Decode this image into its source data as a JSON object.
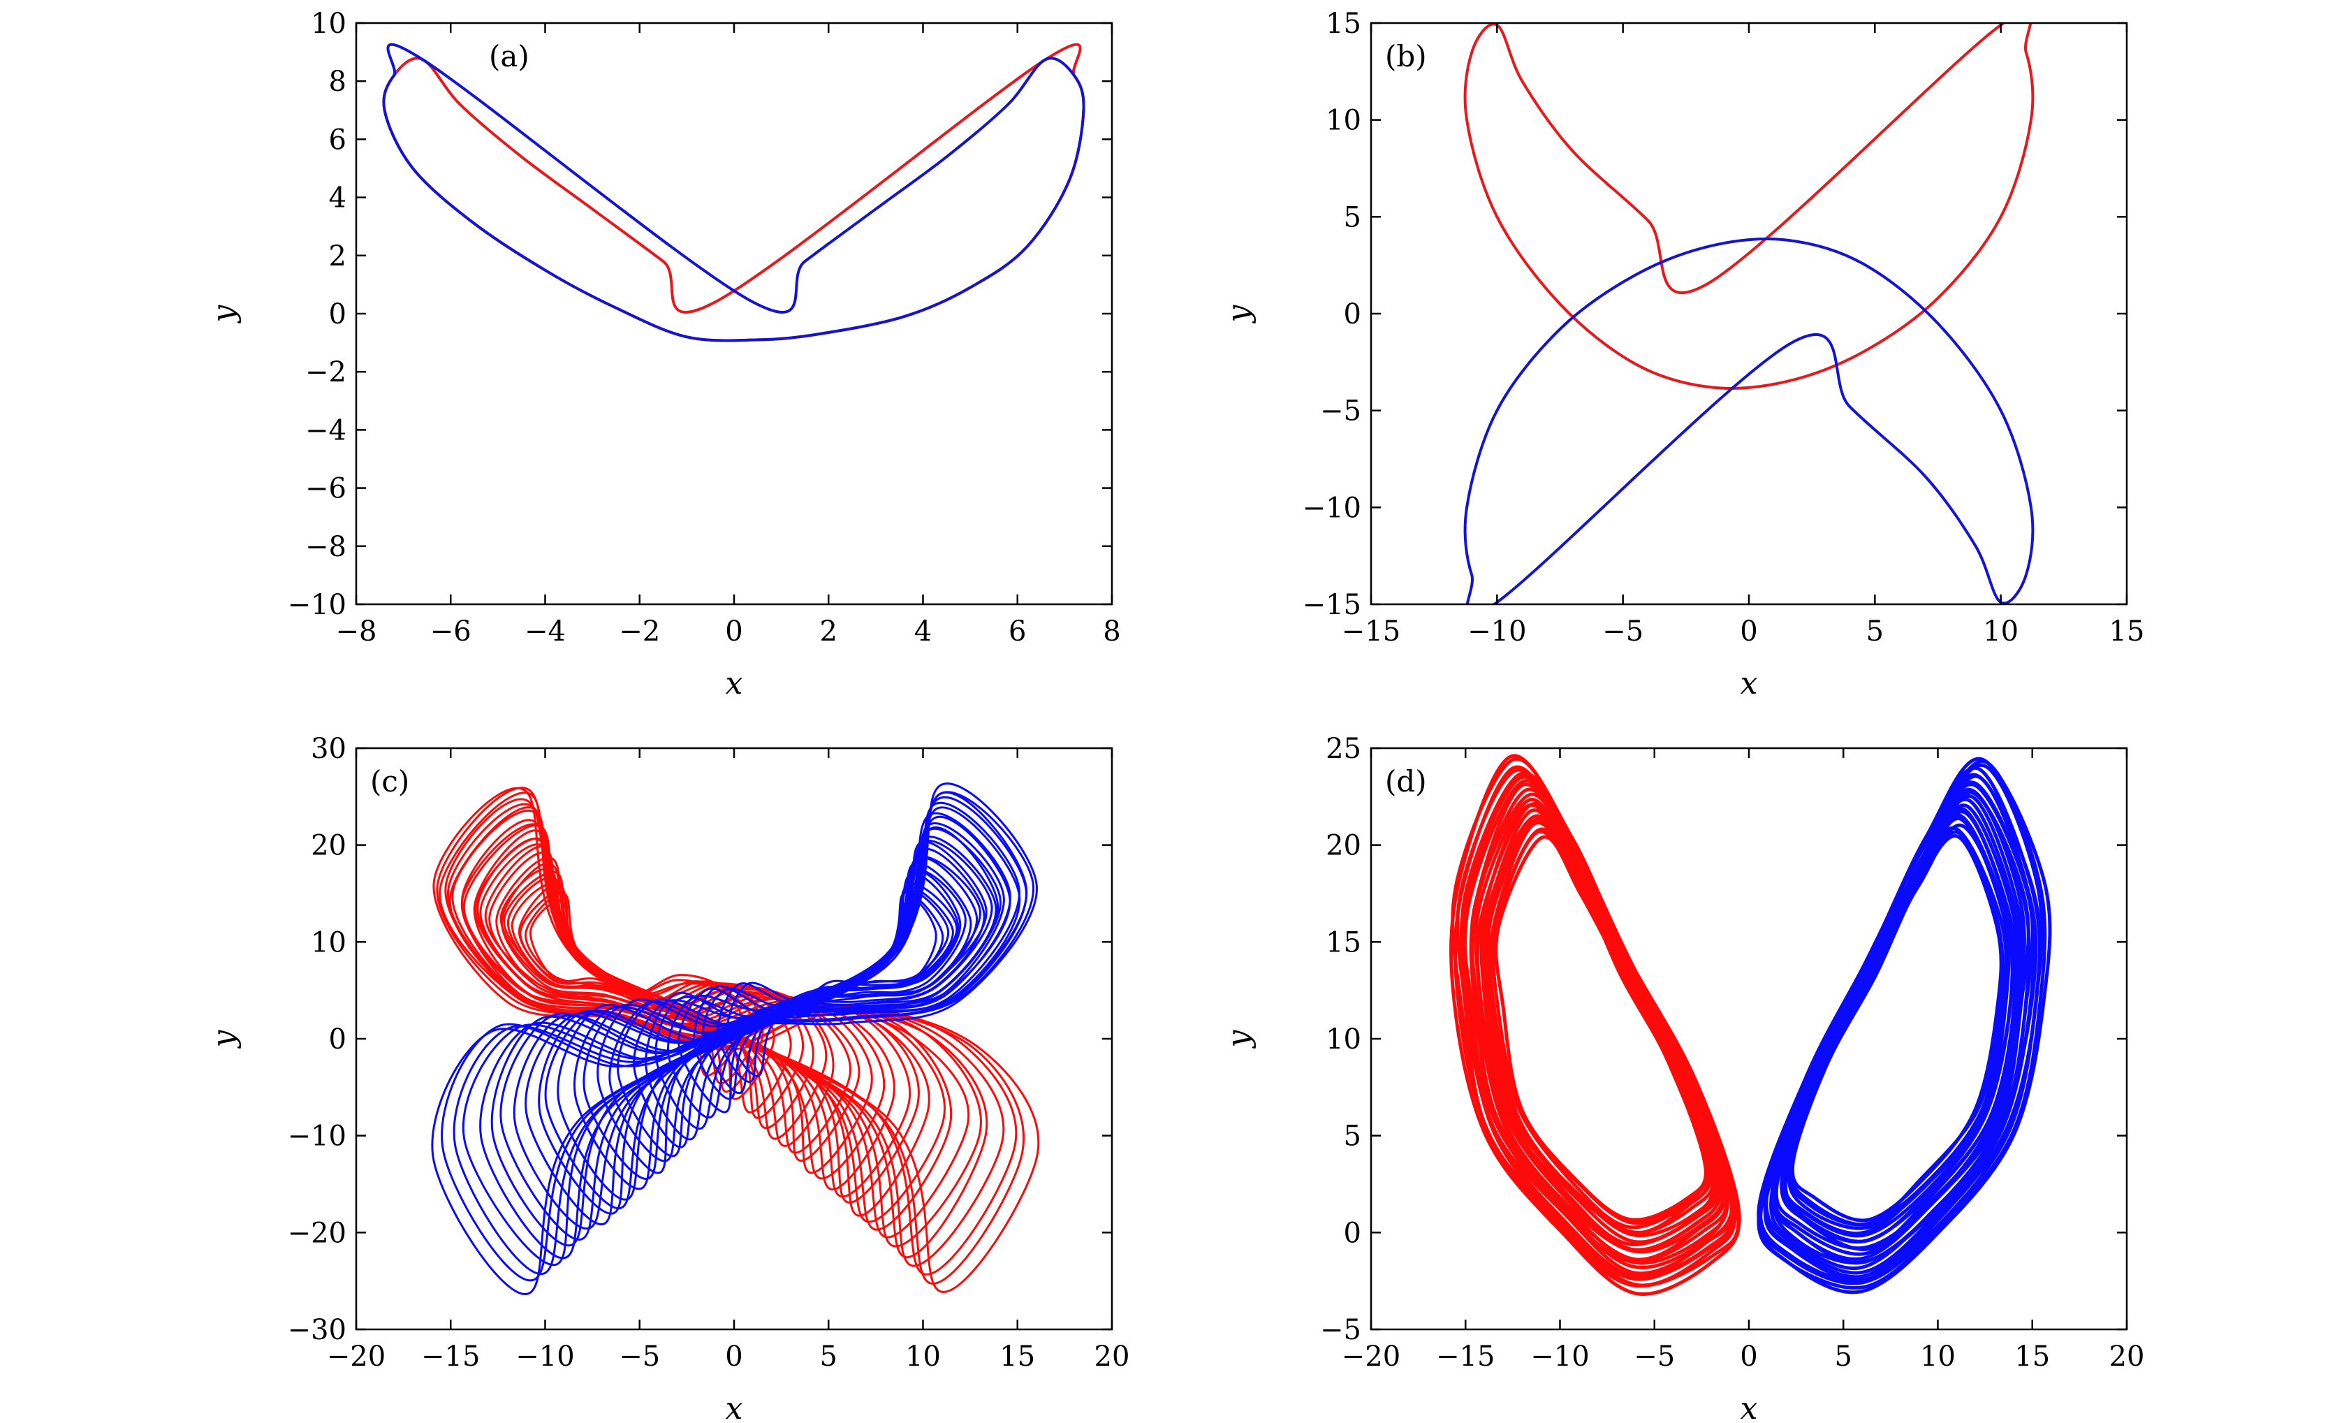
{
  "chart_data": [
    {
      "type": "line",
      "panel_label": "(a)",
      "xlabel": "x",
      "ylabel": "y",
      "xlim": [
        -8,
        8
      ],
      "ylim": [
        -10,
        10
      ],
      "xticks": [
        -8,
        -6,
        -4,
        -2,
        0,
        2,
        4,
        6,
        8
      ],
      "yticks": [
        -10,
        -8,
        -6,
        -4,
        -2,
        0,
        2,
        4,
        6,
        8,
        10
      ],
      "xtick_labels": [
        "−8",
        "−6",
        "−4",
        "−2",
        "0",
        "2",
        "4",
        "6",
        "8"
      ],
      "ytick_labels": [
        "−10",
        "−8",
        "−6",
        "−4",
        "−2",
        "0",
        "2",
        "4",
        "6",
        "8",
        "10"
      ],
      "grid": false,
      "series_colors": [
        "#e8191c",
        "#1414d6"
      ],
      "description_pattern": "periodic butterfly orbit",
      "series": [
        {
          "color": "#e8191c",
          "points": [
            [
              -0.4,
              0.4
            ],
            [
              -1.5,
              1.8
            ],
            [
              -3,
              3.6
            ],
            [
              -4.5,
              5.4
            ],
            [
              -5.8,
              7.2
            ],
            [
              -6.6,
              8.75
            ],
            [
              -7.2,
              8.2
            ],
            [
              -7.4,
              7
            ],
            [
              -6.8,
              5
            ],
            [
              -5.5,
              3.1
            ],
            [
              -3.9,
              1.4
            ],
            [
              -2.5,
              0.2
            ],
            [
              -1,
              -0.8
            ],
            [
              0.5,
              -0.9
            ],
            [
              1.8,
              -0.7
            ],
            [
              3.6,
              -0.1
            ],
            [
              5,
              0.9
            ],
            [
              6.2,
              2.3
            ],
            [
              7.1,
              4.6
            ],
            [
              7.4,
              7
            ],
            [
              7.2,
              8.2
            ],
            [
              6.6,
              8.75
            ]
          ]
        },
        {
          "color": "#1414d6",
          "points": [
            [
              0.4,
              0.4
            ],
            [
              1.5,
              1.8
            ],
            [
              3,
              3.6
            ],
            [
              4.5,
              5.4
            ],
            [
              5.8,
              7.2
            ],
            [
              6.6,
              8.75
            ],
            [
              7.2,
              8.2
            ],
            [
              7.4,
              7
            ],
            [
              7.1,
              4.6
            ],
            [
              6.2,
              2.3
            ],
            [
              5,
              0.9
            ],
            [
              3.6,
              -0.1
            ],
            [
              1.8,
              -0.7
            ],
            [
              0.5,
              -0.9
            ],
            [
              -1,
              -0.8
            ],
            [
              -2.5,
              0.2
            ],
            [
              -3.9,
              1.4
            ],
            [
              -5.5,
              3.1
            ],
            [
              -6.8,
              5
            ],
            [
              -7.4,
              7
            ],
            [
              -7.2,
              8.2
            ],
            [
              -6.6,
              8.75
            ]
          ]
        }
      ]
    },
    {
      "type": "line",
      "panel_label": "(b)",
      "xlabel": "x",
      "ylabel": "y",
      "xlim": [
        -15,
        15
      ],
      "ylim": [
        -15,
        15
      ],
      "xticks": [
        -15,
        -10,
        -5,
        0,
        5,
        10,
        15
      ],
      "yticks": [
        -15,
        -10,
        -5,
        0,
        5,
        10,
        15
      ],
      "xtick_labels": [
        "−15",
        "−10",
        "−5",
        "0",
        "5",
        "10",
        "15"
      ],
      "ytick_labels": [
        "−15",
        "−10",
        "−5",
        "0",
        "5",
        "10",
        "15"
      ],
      "grid": false,
      "series_colors": [
        "#e8191c",
        "#1414d6"
      ],
      "description_pattern": "period-2 butterfly orbit",
      "series": [
        {
          "color": "#e8191c",
          "points": [
            [
              -1.7,
              1.5
            ],
            [
              -4,
              4.8
            ],
            [
              -7,
              8.4
            ],
            [
              -9,
              12
            ],
            [
              -10,
              14.9
            ],
            [
              -11,
              13.5
            ],
            [
              -11.2,
              10
            ],
            [
              -10,
              5
            ],
            [
              -7.5,
              0.5
            ],
            [
              -4.5,
              -2.6
            ],
            [
              -1.5,
              -3.8
            ],
            [
              1.5,
              -3.5
            ],
            [
              4.5,
              -2
            ],
            [
              7.5,
              0.8
            ],
            [
              10,
              5
            ],
            [
              11.2,
              10
            ],
            [
              11,
              13.5
            ],
            [
              10,
              14.9
            ]
          ]
        },
        {
          "color": "#1414d6",
          "points": [
            [
              1.7,
              -1.5
            ],
            [
              4,
              -4.8
            ],
            [
              7,
              -8.4
            ],
            [
              9,
              -12
            ],
            [
              10,
              -14.9
            ],
            [
              11,
              -13.5
            ],
            [
              11.2,
              -10
            ],
            [
              10,
              -5
            ],
            [
              7.5,
              -0.5
            ],
            [
              4.5,
              2.6
            ],
            [
              1.5,
              3.8
            ],
            [
              -1.5,
              3.5
            ],
            [
              -4.5,
              2
            ],
            [
              -7.5,
              -0.8
            ],
            [
              -10,
              -5
            ],
            [
              -11.2,
              -10
            ],
            [
              -11,
              -13.5
            ],
            [
              -10,
              -14.9
            ]
          ]
        }
      ]
    },
    {
      "type": "line",
      "panel_label": "(c)",
      "xlabel": "x",
      "ylabel": "y",
      "xlim": [
        -20,
        20
      ],
      "ylim": [
        -30,
        30
      ],
      "xticks": [
        -20,
        -15,
        -10,
        -5,
        0,
        5,
        10,
        15,
        20
      ],
      "yticks": [
        -30,
        -20,
        -10,
        0,
        10,
        20,
        30
      ],
      "xtick_labels": [
        "−20",
        "−15",
        "−10",
        "−5",
        "0",
        "5",
        "10",
        "15",
        "20"
      ],
      "ytick_labels": [
        "−30",
        "−20",
        "−10",
        "0",
        "10",
        "20",
        "30"
      ],
      "grid": false,
      "series_colors": [
        "#ff0a0a",
        "#0a0aff"
      ],
      "description_pattern": "chaotic double-scroll attractor",
      "series": [
        {
          "color": "#ff0a0a",
          "points": [
            [
              -8,
              8
            ],
            [
              -11,
              26
            ],
            [
              -16,
              16
            ],
            [
              -12,
              4
            ],
            [
              -6,
              2
            ],
            [
              0,
              -1
            ],
            [
              6,
              3
            ],
            [
              13,
              -1
            ],
            [
              16,
              -12
            ],
            [
              11,
              -26
            ],
            [
              8,
              -8
            ]
          ]
        },
        {
          "color": "#0a0aff",
          "points": [
            [
              8,
              8
            ],
            [
              11,
              26
            ],
            [
              16,
              16
            ],
            [
              12,
              4
            ],
            [
              6,
              2
            ],
            [
              0,
              1
            ],
            [
              -6,
              -3
            ],
            [
              -13,
              1
            ],
            [
              -16,
              -12
            ],
            [
              -11,
              -26
            ],
            [
              -8,
              -8
            ]
          ]
        }
      ]
    },
    {
      "type": "line",
      "panel_label": "(d)",
      "xlabel": "x",
      "ylabel": "y",
      "xlim": [
        -20,
        20
      ],
      "ylim": [
        -5,
        25
      ],
      "xticks": [
        -20,
        -15,
        -10,
        -5,
        0,
        5,
        10,
        15,
        20
      ],
      "yticks": [
        -5,
        0,
        5,
        10,
        15,
        20,
        25
      ],
      "xtick_labels": [
        "−20",
        "−15",
        "−10",
        "−5",
        "0",
        "5",
        "10",
        "15",
        "20"
      ],
      "ytick_labels": [
        "−5",
        "0",
        "5",
        "10",
        "15",
        "20",
        "25"
      ],
      "grid": false,
      "series_colors": [
        "#ff0a0a",
        "#0a0aff"
      ],
      "description_pattern": "two separate chaotic attractors",
      "series": [
        {
          "color": "#ff0a0a",
          "points": [
            [
              -12.5,
              24.5
            ],
            [
              -15.5,
              18
            ],
            [
              -15.5,
              12
            ],
            [
              -14,
              5
            ],
            [
              -10,
              0
            ],
            [
              -6,
              -3
            ],
            [
              -2,
              -1.5
            ],
            [
              -0.5,
              1
            ],
            [
              -3,
              8
            ],
            [
              -6.5,
              14.5
            ],
            [
              -9.5,
              20.5
            ]
          ]
        },
        {
          "color": "#0a0aff",
          "points": [
            [
              12.5,
              24.5
            ],
            [
              15.5,
              18
            ],
            [
              15.5,
              12
            ],
            [
              14,
              5
            ],
            [
              10,
              0
            ],
            [
              6,
              -3
            ],
            [
              2,
              -1.5
            ],
            [
              0.5,
              1
            ],
            [
              3,
              8
            ],
            [
              6.5,
              14.5
            ],
            [
              9.5,
              20.5
            ]
          ]
        }
      ]
    }
  ]
}
